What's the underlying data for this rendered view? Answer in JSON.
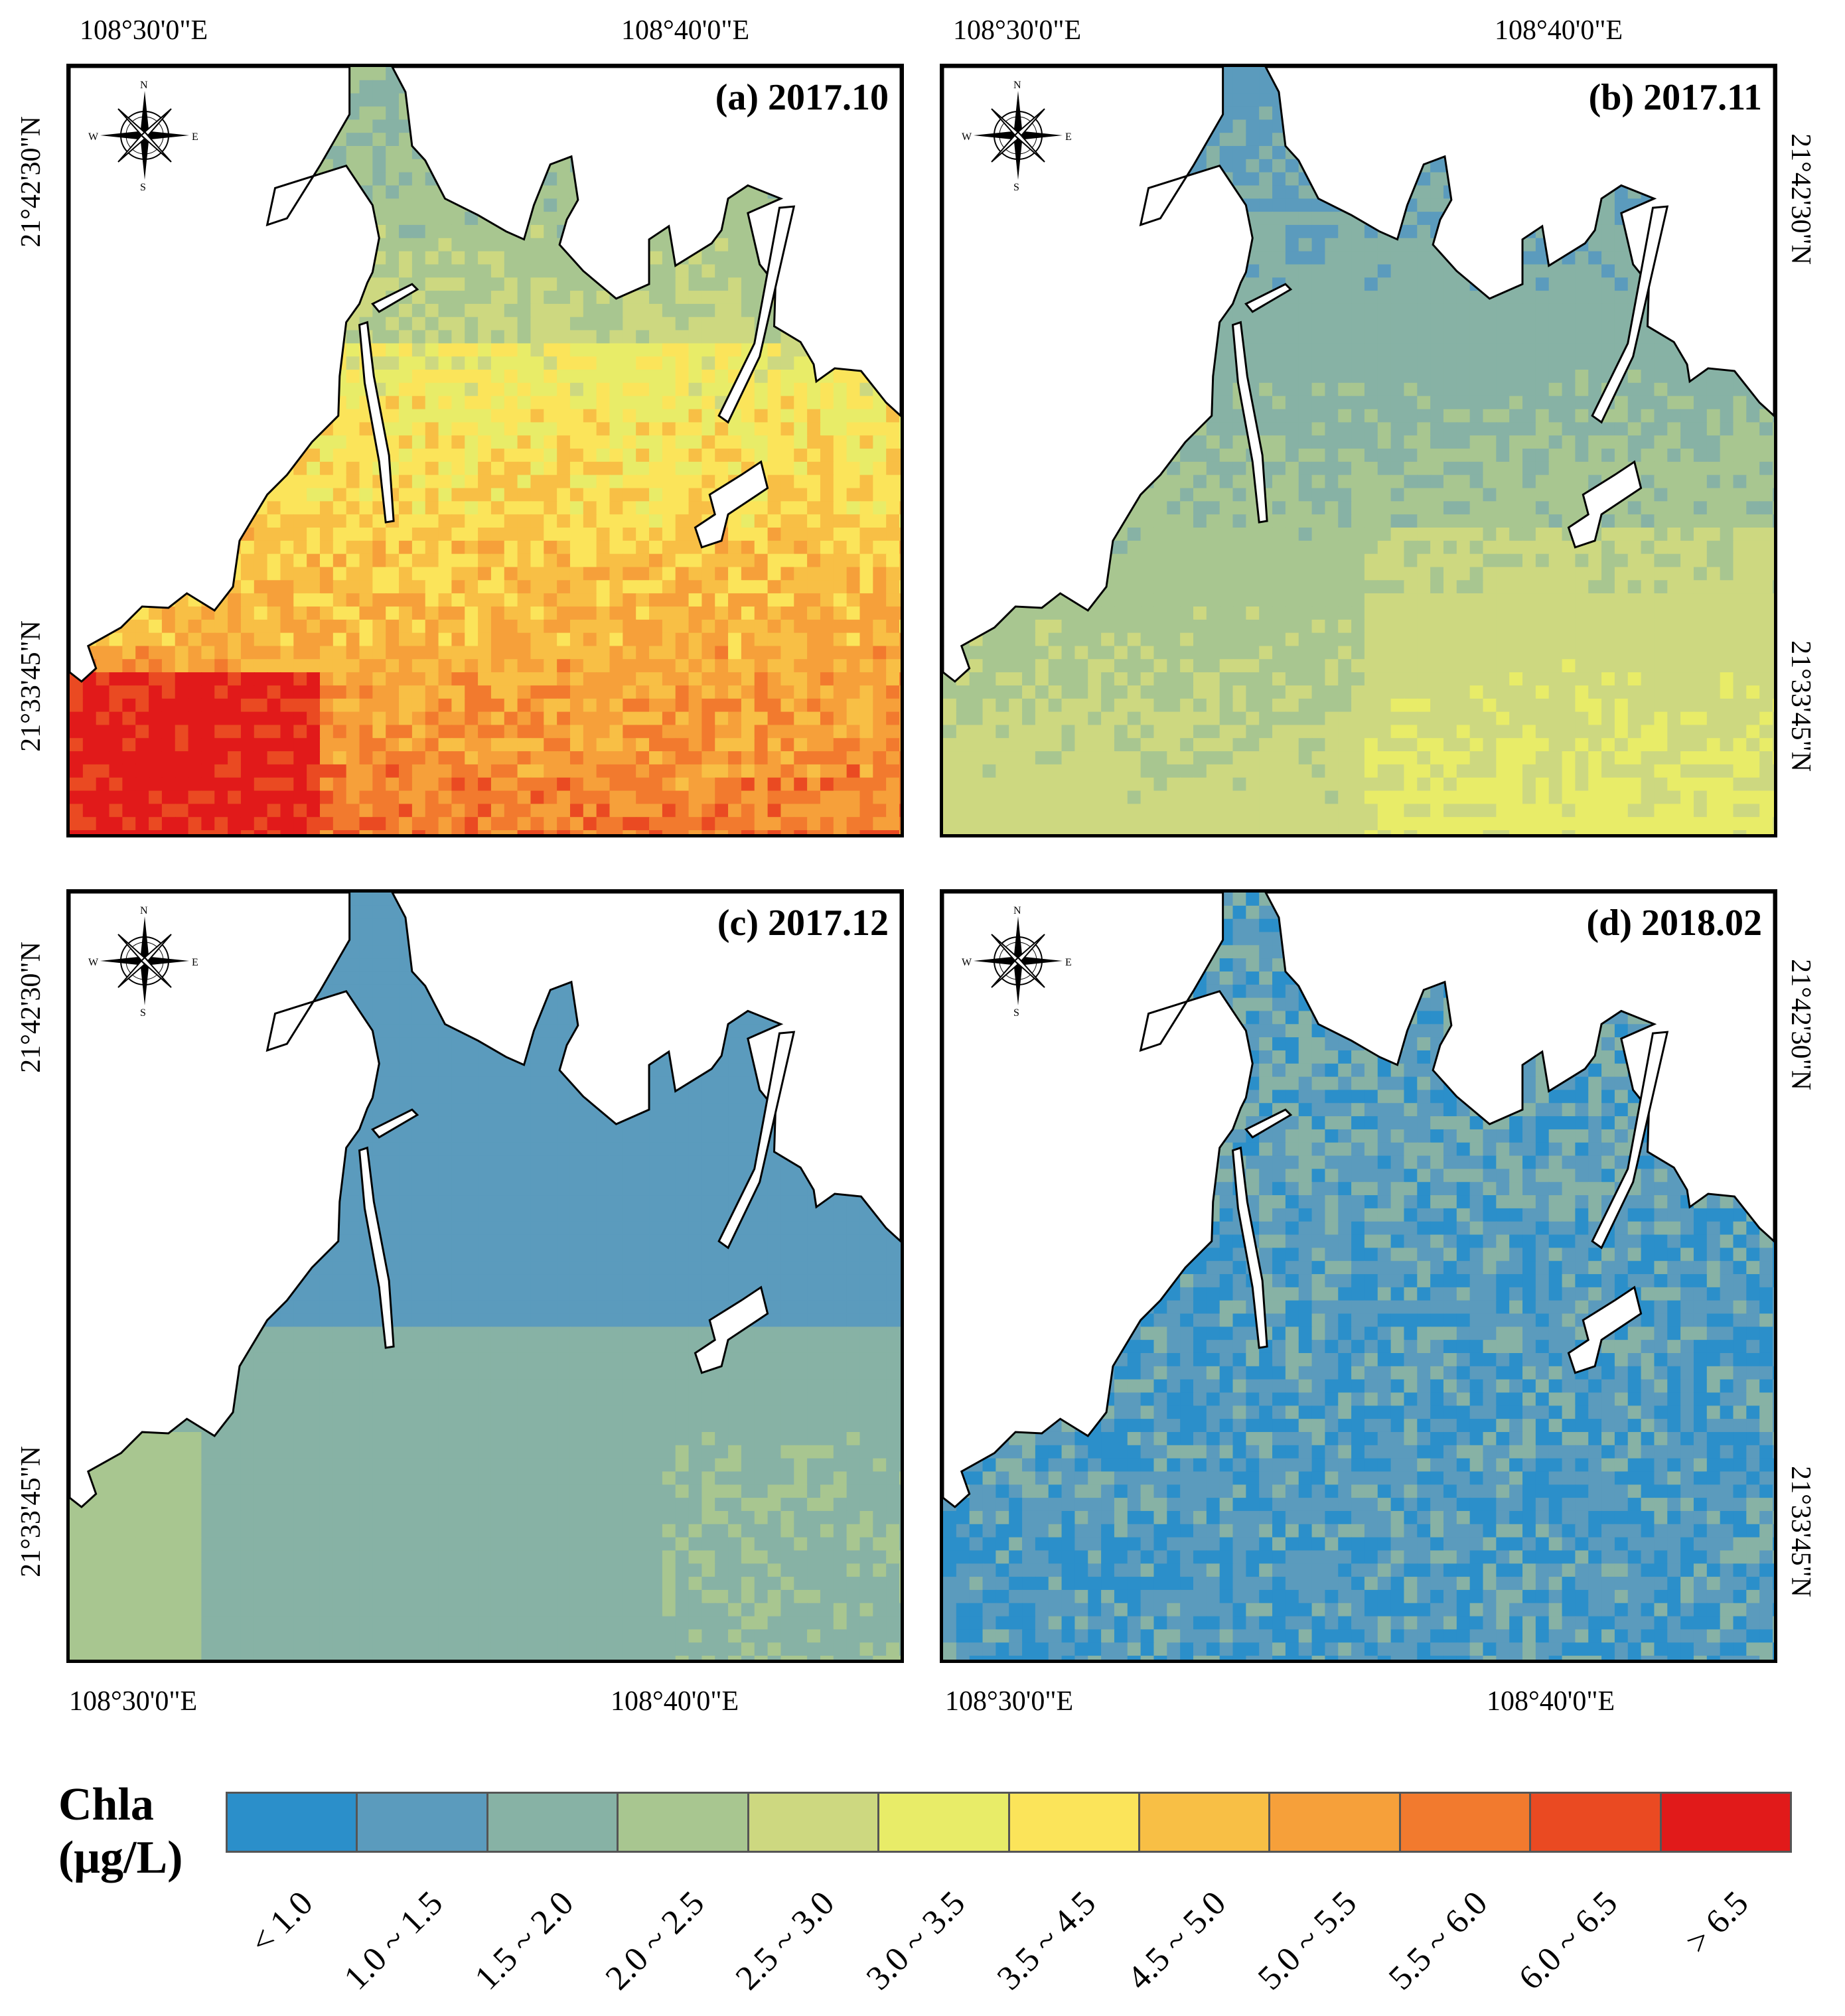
{
  "panels": [
    {
      "id": "a",
      "title": "(a) 2017.10",
      "scheme": "oct"
    },
    {
      "id": "b",
      "title": "(b) 2017.11",
      "scheme": "nov"
    },
    {
      "id": "c",
      "title": "(c) 2017.12",
      "scheme": "dec"
    },
    {
      "id": "d",
      "title": "(d) 2018.02",
      "scheme": "feb"
    }
  ],
  "axes": {
    "lon_left": "108°30'0\"E",
    "lon_right": "108°40'0\"E",
    "lat_top": "21°42'30\"N",
    "lat_bottom": "21°33'45\"N"
  },
  "compass": {
    "n": "N",
    "s": "S",
    "e": "E",
    "w": "W"
  },
  "legend": {
    "title_line1": "Chla",
    "title_line2": "(μg/L)",
    "classes": [
      {
        "label": "< 1.0",
        "color": "#2b8fca"
      },
      {
        "label": "1.0 ~ 1.5",
        "color": "#5b9bbd"
      },
      {
        "label": "1.5 ~ 2.0",
        "color": "#87b2a5"
      },
      {
        "label": "2.0 ~ 2.5",
        "color": "#a8c690"
      },
      {
        "label": "2.5 ~ 3.0",
        "color": "#cdd880"
      },
      {
        "label": "3.0 ~ 3.5",
        "color": "#e8ec68"
      },
      {
        "label": "3.5 ~ 4.5",
        "color": "#fbe45a"
      },
      {
        "label": "4.5 ~ 5.0",
        "color": "#f8bf45"
      },
      {
        "label": "5.0 ~ 5.5",
        "color": "#f6a03a"
      },
      {
        "label": "5.5 ~ 6.0",
        "color": "#f27a2e"
      },
      {
        "label": "6.0 ~ 6.5",
        "color": "#ea4a22"
      },
      {
        "label": "> 6.5",
        "color": "#e11a1a"
      }
    ]
  }
}
